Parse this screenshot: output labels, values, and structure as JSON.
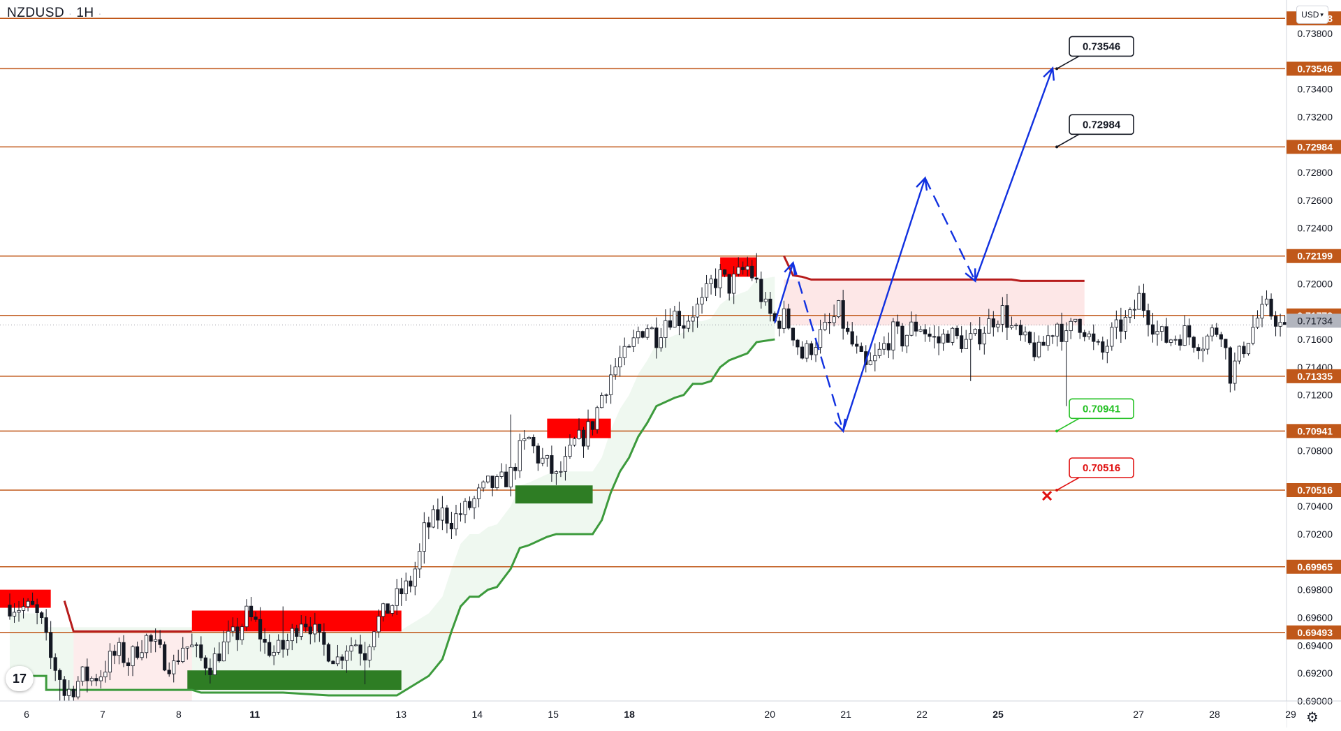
{
  "header": {
    "symbol": "NZDUSD",
    "timeframe": "1H"
  },
  "currency_selector": {
    "label": "USD",
    "icon": "chevron-down-icon"
  },
  "logo": {
    "name": "tradingview-logo",
    "text": "17"
  },
  "settings": {
    "icon": "gear-icon"
  },
  "colors": {
    "level_line": "#c0581a",
    "level_tag_bg": "#c0581a",
    "current_price_tag_bg": "#b2b5be",
    "bull_candle": "#26a69a",
    "candle": "#131722",
    "projection": "#1030e0",
    "supply_zone": "#ff0000",
    "demand_zone": "#2e7d24",
    "trail_green": "#3c9a3c",
    "trail_red": "#b71c1c",
    "target_green": "#22c022",
    "target_red": "#e01010"
  },
  "chart_data": {
    "type": "candlestick",
    "symbol": "NZDUSD",
    "interval": "1H",
    "x_ticks": [
      {
        "label": "6",
        "idx": 2,
        "bold": false
      },
      {
        "label": "7",
        "idx": 15,
        "bold": false
      },
      {
        "label": "8",
        "idx": 28,
        "bold": false
      },
      {
        "label": "11",
        "idx": 41,
        "bold": true
      },
      {
        "label": "13",
        "idx": 66,
        "bold": false
      },
      {
        "label": "14",
        "idx": 79,
        "bold": false
      },
      {
        "label": "15",
        "idx": 92,
        "bold": false
      },
      {
        "label": "18",
        "idx": 105,
        "bold": true
      },
      {
        "label": "20",
        "idx": 129,
        "bold": false
      },
      {
        "label": "21",
        "idx": 142,
        "bold": false
      },
      {
        "label": "22",
        "idx": 155,
        "bold": false
      },
      {
        "label": "25",
        "idx": 168,
        "bold": true
      },
      {
        "label": "27",
        "idx": 192,
        "bold": false
      },
      {
        "label": "28",
        "idx": 205,
        "bold": false
      },
      {
        "label": "29",
        "idx": 218,
        "bold": false
      }
    ],
    "y_range": [
      0.69,
      0.7404
    ],
    "y_ticks": [
      "0.73800",
      "0.73400",
      "0.73200",
      "0.72800",
      "0.72600",
      "0.72400",
      "0.72000",
      "0.71600",
      "0.71400",
      "0.71200",
      "0.70800",
      "0.70400",
      "0.70200",
      "0.69800",
      "0.69600",
      "0.69400",
      "0.69200",
      "0.69000"
    ],
    "levels": [
      {
        "price": 0.73908,
        "label": "0.73908"
      },
      {
        "price": 0.73546,
        "label": "0.73546"
      },
      {
        "price": 0.72984,
        "label": "0.72984"
      },
      {
        "price": 0.72199,
        "label": "0.72199"
      },
      {
        "price": 0.71772,
        "label": "0.71772"
      },
      {
        "price": 0.71335,
        "label": "0.71335"
      },
      {
        "price": 0.70941,
        "label": "0.70941"
      },
      {
        "price": 0.70516,
        "label": "0.70516"
      },
      {
        "price": 0.69965,
        "label": "0.69965"
      },
      {
        "price": 0.69493,
        "label": "0.69493"
      }
    ],
    "current_price": {
      "price": 0.71734,
      "label": "0.71734"
    },
    "target_callouts": [
      {
        "label": "0.73546",
        "price": 0.73546,
        "style": "black"
      },
      {
        "label": "0.72984",
        "price": 0.72984,
        "style": "black"
      },
      {
        "label": "0.70941",
        "price": 0.70941,
        "style": "green"
      },
      {
        "label": "0.70516",
        "price": 0.70516,
        "style": "red"
      }
    ],
    "candle_anchors": [
      [
        0,
        0.6969
      ],
      [
        5,
        0.6966
      ],
      [
        7,
        0.6955
      ],
      [
        9,
        0.693
      ],
      [
        11,
        0.6918
      ],
      [
        12,
        0.6905
      ],
      [
        14,
        0.691
      ],
      [
        16,
        0.6918
      ],
      [
        18,
        0.6916
      ],
      [
        20,
        0.692
      ],
      [
        22,
        0.693
      ],
      [
        24,
        0.6935
      ],
      [
        26,
        0.6928
      ],
      [
        28,
        0.6938
      ],
      [
        30,
        0.6945
      ],
      [
        32,
        0.6938
      ],
      [
        34,
        0.693
      ],
      [
        36,
        0.6925
      ],
      [
        38,
        0.694
      ],
      [
        40,
        0.6938
      ],
      [
        42,
        0.693
      ],
      [
        44,
        0.6926
      ],
      [
        46,
        0.6935
      ],
      [
        48,
        0.6944
      ],
      [
        50,
        0.6948
      ],
      [
        52,
        0.6962
      ],
      [
        54,
        0.6955
      ],
      [
        56,
        0.694
      ],
      [
        58,
        0.6935
      ],
      [
        60,
        0.6938
      ],
      [
        62,
        0.6948
      ],
      [
        64,
        0.696
      ],
      [
        66,
        0.6955
      ],
      [
        68,
        0.6942
      ],
      [
        70,
        0.6936
      ],
      [
        72,
        0.693
      ],
      [
        74,
        0.694
      ],
      [
        76,
        0.6942
      ],
      [
        78,
        0.6935
      ],
      [
        79,
        0.6945
      ],
      [
        80,
        0.6955
      ],
      [
        82,
        0.6962
      ],
      [
        84,
        0.697
      ],
      [
        86,
        0.6978
      ],
      [
        88,
        0.6985
      ],
      [
        89,
        0.6995
      ],
      [
        90,
        0.7005
      ],
      [
        91,
        0.7022
      ],
      [
        93,
        0.703
      ],
      [
        95,
        0.7035
      ],
      [
        97,
        0.703
      ],
      [
        99,
        0.7035
      ],
      [
        101,
        0.704
      ],
      [
        103,
        0.7048
      ],
      [
        105,
        0.7055
      ],
      [
        107,
        0.7055
      ],
      [
        109,
        0.706
      ],
      [
        110,
        0.7063
      ],
      [
        112,
        0.708
      ],
      [
        114,
        0.7088
      ],
      [
        116,
        0.7075
      ],
      [
        118,
        0.707
      ],
      [
        120,
        0.706
      ],
      [
        122,
        0.707
      ],
      [
        124,
        0.7085
      ],
      [
        126,
        0.709
      ],
      [
        128,
        0.71
      ],
      [
        130,
        0.712
      ],
      [
        132,
        0.7135
      ],
      [
        134,
        0.7145
      ],
      [
        136,
        0.715
      ],
      [
        138,
        0.7165
      ],
      [
        140,
        0.717
      ],
      [
        142,
        0.7162
      ],
      [
        144,
        0.7175
      ],
      [
        146,
        0.7178
      ],
      [
        148,
        0.7172
      ],
      [
        150,
        0.718
      ],
      [
        152,
        0.7185
      ],
      [
        154,
        0.72
      ],
      [
        156,
        0.7205
      ],
      [
        158,
        0.7198
      ],
      [
        160,
        0.7206
      ],
      [
        162,
        0.7212
      ],
      [
        164,
        0.72
      ],
      [
        166,
        0.7182
      ],
      [
        168,
        0.7172
      ],
      [
        170,
        0.7176
      ],
      [
        172,
        0.7165
      ],
      [
        174,
        0.7148
      ],
      [
        176,
        0.7155
      ],
      [
        178,
        0.7163
      ],
      [
        180,
        0.717
      ],
      [
        182,
        0.718
      ],
      [
        184,
        0.7162
      ],
      [
        186,
        0.715
      ],
      [
        188,
        0.7138
      ],
      [
        190,
        0.7145
      ],
      [
        192,
        0.7155
      ],
      [
        194,
        0.7165
      ],
      [
        196,
        0.716
      ],
      [
        198,
        0.7168
      ],
      [
        200,
        0.717
      ],
      [
        202,
        0.7162
      ],
      [
        204,
        0.7158
      ],
      [
        206,
        0.7165
      ],
      [
        208,
        0.716
      ],
      [
        210,
        0.7158
      ],
      [
        212,
        0.716
      ],
      [
        214,
        0.7168
      ],
      [
        216,
        0.7175
      ],
      [
        218,
        0.718
      ],
      [
        220,
        0.7168
      ],
      [
        222,
        0.716
      ],
      [
        224,
        0.7155
      ],
      [
        226,
        0.715
      ],
      [
        228,
        0.7162
      ],
      [
        230,
        0.7172
      ],
      [
        232,
        0.716
      ],
      [
        234,
        0.7175
      ],
      [
        236,
        0.7168
      ],
      [
        238,
        0.7155
      ],
      [
        240,
        0.715
      ],
      [
        242,
        0.7163
      ],
      [
        244,
        0.717
      ],
      [
        246,
        0.7175
      ],
      [
        248,
        0.719
      ],
      [
        250,
        0.7178
      ],
      [
        252,
        0.7165
      ],
      [
        254,
        0.716
      ],
      [
        256,
        0.7162
      ],
      [
        258,
        0.7165
      ],
      [
        260,
        0.716
      ],
      [
        262,
        0.7158
      ],
      [
        264,
        0.7165
      ],
      [
        266,
        0.7168
      ],
      [
        268,
        0.7135
      ],
      [
        270,
        0.7148
      ],
      [
        272,
        0.7162
      ],
      [
        274,
        0.7175
      ],
      [
        276,
        0.7182
      ],
      [
        278,
        0.7175
      ],
      [
        280,
        0.7165
      ],
      [
        282,
        0.716
      ],
      [
        284,
        0.7168
      ],
      [
        286,
        0.7175
      ],
      [
        288,
        0.7177
      ],
      [
        290,
        0.7173
      ]
    ],
    "spikes": [
      {
        "idx": 110,
        "high": 0.7106
      },
      {
        "idx": 232,
        "low": 0.7112
      },
      {
        "idx": 211,
        "low": 0.713
      },
      {
        "idx": 164,
        "high": 0.7222
      },
      {
        "idx": 11,
        "low": 0.69
      },
      {
        "idx": 78,
        "low": 0.6912
      },
      {
        "idx": 60,
        "high": 0.6968
      }
    ],
    "supply_zones": [
      {
        "x0": -3,
        "x1": 9,
        "y0": 0.698,
        "y1": 0.6967
      },
      {
        "x0": 40,
        "x1": 86,
        "y0": 0.6965,
        "y1": 0.695
      },
      {
        "x0": 118,
        "x1": 132,
        "y0": 0.7103,
        "y1": 0.7089
      },
      {
        "x0": 156,
        "x1": 164,
        "y0": 0.7219,
        "y1": 0.7205
      }
    ],
    "demand_zones": [
      {
        "x0": 39,
        "x1": 86,
        "y0": 0.6922,
        "y1": 0.6908
      },
      {
        "x0": 111,
        "x1": 128,
        "y0": 0.7055,
        "y1": 0.7042
      }
    ],
    "trail_green": [
      [
        0,
        0.6918
      ],
      [
        8,
        0.6918
      ],
      [
        8,
        0.6908
      ],
      [
        40,
        0.6908
      ],
      [
        42,
        0.6906
      ],
      [
        60,
        0.6906
      ],
      [
        70,
        0.6904
      ],
      [
        85,
        0.6904
      ],
      [
        92,
        0.6918
      ],
      [
        95,
        0.693
      ],
      [
        97,
        0.695
      ],
      [
        99,
        0.6968
      ],
      [
        101,
        0.6975
      ],
      [
        103,
        0.6975
      ],
      [
        105,
        0.698
      ],
      [
        107,
        0.6982
      ],
      [
        110,
        0.6995
      ],
      [
        112,
        0.701
      ],
      [
        114,
        0.7012
      ],
      [
        116,
        0.7015
      ],
      [
        118,
        0.7018
      ],
      [
        120,
        0.702
      ],
      [
        124,
        0.702
      ],
      [
        128,
        0.702
      ],
      [
        130,
        0.703
      ],
      [
        132,
        0.705
      ],
      [
        134,
        0.7065
      ],
      [
        136,
        0.7075
      ],
      [
        138,
        0.709
      ],
      [
        140,
        0.71
      ],
      [
        142,
        0.7112
      ],
      [
        146,
        0.7118
      ],
      [
        148,
        0.712
      ],
      [
        150,
        0.7128
      ],
      [
        152,
        0.7128
      ],
      [
        154,
        0.713
      ],
      [
        156,
        0.714
      ],
      [
        158,
        0.7145
      ],
      [
        162,
        0.715
      ],
      [
        164,
        0.7158
      ],
      [
        168,
        0.716
      ]
    ],
    "trail_red": [
      [
        12,
        0.6972
      ],
      [
        14,
        0.695
      ],
      [
        40,
        0.695
      ],
      [
        170,
        0.722
      ],
      [
        172,
        0.7206
      ],
      [
        174,
        0.7205
      ],
      [
        176,
        0.7203
      ],
      [
        220,
        0.7203
      ],
      [
        222,
        0.7202
      ],
      [
        236,
        0.7202
      ]
    ],
    "projection_path": [
      {
        "from": [
          168,
          0.7172
        ],
        "to": [
          172,
          0.7215
        ],
        "dashed": false
      },
      {
        "from": [
          172,
          0.7215
        ],
        "to": [
          183,
          0.7094
        ],
        "dashed": true
      },
      {
        "from": [
          183,
          0.7094
        ],
        "to": [
          201,
          0.7276
        ],
        "dashed": false
      },
      {
        "from": [
          201,
          0.7276
        ],
        "to": [
          212,
          0.7202
        ],
        "dashed": true
      },
      {
        "from": [
          212,
          0.7202
        ],
        "to": [
          229,
          0.7355
        ],
        "dashed": false
      }
    ]
  }
}
